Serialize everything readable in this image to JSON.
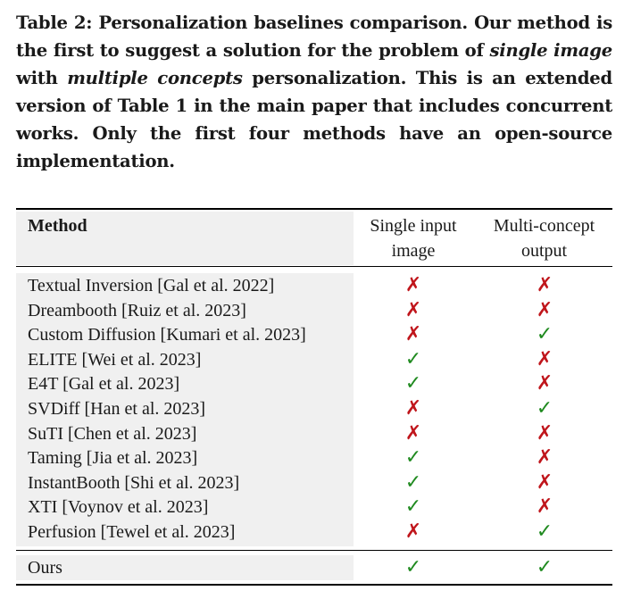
{
  "caption": {
    "part1": "Table 2: Personalization baselines comparison. Our method is the first to suggest a solution for the problem of ",
    "em1": "single image",
    "part2": " with ",
    "em2": "multiple concepts",
    "part3": " personalization. This is an extended version of Table 1 in the main paper that includes concurrent works. Only the first four methods have an open-source implementation."
  },
  "table": {
    "headers": {
      "method": "Method",
      "single_line1": "Single input",
      "single_line2": "image",
      "multi_line1": "Multi-concept",
      "multi_line2": "output"
    },
    "symbols": {
      "yes": "✓",
      "no": "✗"
    },
    "rows": [
      {
        "method": "Textual Inversion [Gal et al. 2022]",
        "single": "no",
        "multi": "no"
      },
      {
        "method": "Dreambooth [Ruiz et al. 2023]",
        "single": "no",
        "multi": "no"
      },
      {
        "method": "Custom Diffusion [Kumari et al. 2023]",
        "single": "no",
        "multi": "yes"
      },
      {
        "method": "ELITE [Wei et al. 2023]",
        "single": "yes",
        "multi": "no"
      },
      {
        "method": "E4T [Gal et al. 2023]",
        "single": "yes",
        "multi": "no"
      },
      {
        "method": "SVDiff [Han et al. 2023]",
        "single": "no",
        "multi": "yes"
      },
      {
        "method": "SuTI [Chen et al. 2023]",
        "single": "no",
        "multi": "no"
      },
      {
        "method": "Taming [Jia et al. 2023]",
        "single": "yes",
        "multi": "no"
      },
      {
        "method": "InstantBooth [Shi et al. 2023]",
        "single": "yes",
        "multi": "no"
      },
      {
        "method": "XTI [Voynov et al. 2023]",
        "single": "yes",
        "multi": "no"
      },
      {
        "method": "Perfusion [Tewel et al. 2023]",
        "single": "no",
        "multi": "yes"
      }
    ],
    "ours": {
      "method": "Ours",
      "single": "yes",
      "multi": "yes"
    }
  }
}
